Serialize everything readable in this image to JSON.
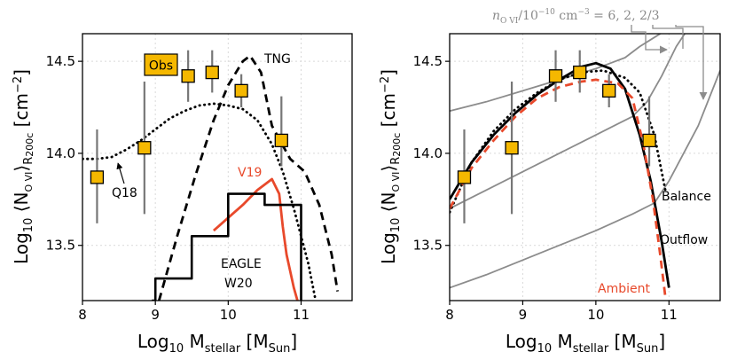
{
  "chart_data": [
    {
      "type": "line",
      "panel": "left",
      "xlabel_main": "Log",
      "xlabel_sub": "10",
      "xlabel_var": " M",
      "xlabel_varsub": "stellar",
      "xlabel_unit_open": " [M",
      "xlabel_unitsub": "Sun",
      "xlabel_unit_close": "]",
      "ylabel_main": "Log",
      "ylabel_sub": "10",
      "ylabel_mid": " ⟨N",
      "ylabel_ion": "O VI",
      "ylabel_close": "⟩",
      "ylabel_r": "R",
      "ylabel_rsub": "200c",
      "ylabel_unit": " [cm",
      "ylabel_exp": "−2",
      "ylabel_unit_close": "]",
      "xlim": [
        8.0,
        11.7
      ],
      "ylim": [
        13.2,
        14.65
      ],
      "xticks": [
        "8",
        "9",
        "10",
        "11"
      ],
      "yticks": [
        "13.5",
        "14.0",
        "14.5"
      ],
      "grid": true,
      "observations": {
        "label": "Obs",
        "color": "#f5b800",
        "points": [
          {
            "x": 8.2,
            "y": 13.87,
            "lo": 13.62,
            "hi": 14.13
          },
          {
            "x": 8.85,
            "y": 14.03,
            "lo": 13.67,
            "hi": 14.39
          },
          {
            "x": 9.45,
            "y": 14.42,
            "lo": 14.28,
            "hi": 14.56
          },
          {
            "x": 9.78,
            "y": 14.44,
            "lo": 14.33,
            "hi": 14.56
          },
          {
            "x": 10.18,
            "y": 14.34,
            "lo": 14.25,
            "hi": 14.43
          },
          {
            "x": 10.73,
            "y": 14.07,
            "lo": 13.93,
            "hi": 14.31
          }
        ]
      },
      "series": [
        {
          "name": "TNG",
          "style": "dashed",
          "color": "#000000",
          "x": [
            9.05,
            9.3,
            9.55,
            9.8,
            10.0,
            10.2,
            10.3,
            10.45,
            10.6,
            10.85,
            11.05,
            11.25,
            11.42,
            11.5
          ],
          "y": [
            13.2,
            13.55,
            13.88,
            14.18,
            14.37,
            14.5,
            14.53,
            14.44,
            14.15,
            13.97,
            13.9,
            13.72,
            13.45,
            13.25
          ]
        },
        {
          "name": "Q18",
          "style": "dotted",
          "color": "#000000",
          "x": [
            8.0,
            8.2,
            8.4,
            8.6,
            8.8,
            9.0,
            9.2,
            9.4,
            9.6,
            9.8,
            10.0,
            10.2,
            10.4,
            10.6,
            10.75,
            10.9,
            11.0,
            11.1,
            11.2
          ],
          "y": [
            13.97,
            13.97,
            13.98,
            14.02,
            14.07,
            14.13,
            14.19,
            14.23,
            14.26,
            14.27,
            14.26,
            14.24,
            14.18,
            14.05,
            13.9,
            13.7,
            13.55,
            13.4,
            13.2
          ]
        },
        {
          "name": "V19",
          "style": "solid",
          "color": "#e8492b",
          "x": [
            9.8,
            10.0,
            10.2,
            10.4,
            10.6,
            10.7,
            10.75,
            10.8,
            10.9,
            10.95
          ],
          "y": [
            13.58,
            13.65,
            13.72,
            13.8,
            13.86,
            13.78,
            13.6,
            13.45,
            13.27,
            13.2
          ]
        },
        {
          "name": "EAGLE W20",
          "style": "step",
          "color": "#000000",
          "x": [
            8.95,
            9.0,
            9.0,
            9.5,
            9.5,
            10.0,
            10.0,
            10.5,
            10.5,
            11.0,
            11.0
          ],
          "y": [
            13.2,
            13.2,
            13.32,
            13.32,
            13.55,
            13.55,
            13.78,
            13.78,
            13.72,
            13.72,
            13.2
          ]
        }
      ],
      "annotations": [
        "TNG",
        "Q18",
        "V19",
        "EAGLE",
        "W20"
      ]
    },
    {
      "type": "line",
      "panel": "right",
      "xlim": [
        8.0,
        11.7
      ],
      "ylim": [
        13.2,
        14.65
      ],
      "xticks": [
        "8",
        "9",
        "10",
        "11"
      ],
      "yticks": [
        "13.5",
        "14.0",
        "14.5"
      ],
      "grid": true,
      "top_annotation": "n_{O VI}/10^{−10} cm^{−3} = 6, 2, 2/3",
      "top_ann_n": "n",
      "top_ann_nsub": "O VI",
      "top_ann_div": "/10",
      "top_ann_exp1": "−10",
      "top_ann_unit": " cm",
      "top_ann_exp2": "−3",
      "top_ann_vals": " = 6, 2, 2/3",
      "observations": {
        "label": "Obs",
        "color": "#f5b800",
        "points": [
          {
            "x": 8.2,
            "y": 13.87,
            "lo": 13.62,
            "hi": 14.13
          },
          {
            "x": 8.85,
            "y": 14.03,
            "lo": 13.67,
            "hi": 14.39
          },
          {
            "x": 9.45,
            "y": 14.42,
            "lo": 14.28,
            "hi": 14.56
          },
          {
            "x": 9.78,
            "y": 14.44,
            "lo": 14.33,
            "hi": 14.56
          },
          {
            "x": 10.18,
            "y": 14.34,
            "lo": 14.25,
            "hi": 14.43
          },
          {
            "x": 10.73,
            "y": 14.07,
            "lo": 13.93,
            "hi": 14.31
          }
        ]
      },
      "series": [
        {
          "name": "gray-6",
          "style": "solid",
          "color": "#8c8c8c",
          "x": [
            8.0,
            8.5,
            9.0,
            9.5,
            10.0,
            10.2,
            10.4,
            10.6,
            10.8,
            11.0,
            11.2
          ],
          "y": [
            14.23,
            14.28,
            14.34,
            14.4,
            14.46,
            14.49,
            14.52,
            14.58,
            14.63,
            14.68,
            14.72
          ]
        },
        {
          "name": "gray-2",
          "style": "solid",
          "color": "#8c8c8c",
          "x": [
            8.0,
            8.5,
            9.0,
            9.5,
            10.0,
            10.3,
            10.5,
            10.7,
            10.9,
            11.1,
            11.3
          ],
          "y": [
            13.7,
            13.8,
            13.9,
            14.0,
            14.1,
            14.16,
            14.2,
            14.28,
            14.42,
            14.58,
            14.7
          ]
        },
        {
          "name": "gray-2/3",
          "style": "solid",
          "color": "#8c8c8c",
          "x": [
            8.0,
            8.5,
            9.0,
            9.5,
            10.0,
            10.5,
            10.8,
            11.0,
            11.2,
            11.4,
            11.7
          ],
          "y": [
            13.27,
            13.34,
            13.42,
            13.5,
            13.58,
            13.67,
            13.73,
            13.85,
            14.0,
            14.15,
            14.45
          ]
        },
        {
          "name": "Balance",
          "style": "dotted",
          "color": "#000000",
          "x": [
            8.0,
            8.3,
            8.6,
            8.9,
            9.2,
            9.5,
            9.8,
            10.1,
            10.4,
            10.6,
            10.8,
            10.95
          ],
          "y": [
            13.68,
            13.95,
            14.12,
            14.24,
            14.33,
            14.4,
            14.44,
            14.45,
            14.41,
            14.33,
            14.1,
            13.8
          ]
        },
        {
          "name": "Outflow",
          "style": "solid",
          "color": "#000000",
          "x": [
            8.0,
            8.3,
            8.6,
            8.9,
            9.2,
            9.5,
            9.8,
            10.0,
            10.2,
            10.4,
            10.6,
            10.75,
            10.9,
            11.0
          ],
          "y": [
            13.75,
            13.95,
            14.1,
            14.22,
            14.32,
            14.4,
            14.47,
            14.49,
            14.46,
            14.35,
            14.1,
            13.85,
            13.52,
            13.27
          ]
        },
        {
          "name": "Ambient",
          "style": "dashed",
          "color": "#e8492b",
          "x": [
            8.0,
            8.3,
            8.6,
            8.9,
            9.2,
            9.5,
            9.8,
            10.0,
            10.3,
            10.5,
            10.65,
            10.78,
            10.88,
            10.95
          ],
          "y": [
            13.7,
            13.92,
            14.07,
            14.2,
            14.3,
            14.36,
            14.39,
            14.4,
            14.38,
            14.3,
            14.05,
            13.75,
            13.45,
            13.22
          ]
        }
      ],
      "annotations": [
        "Balance",
        "Outflow",
        "Ambient"
      ]
    }
  ]
}
